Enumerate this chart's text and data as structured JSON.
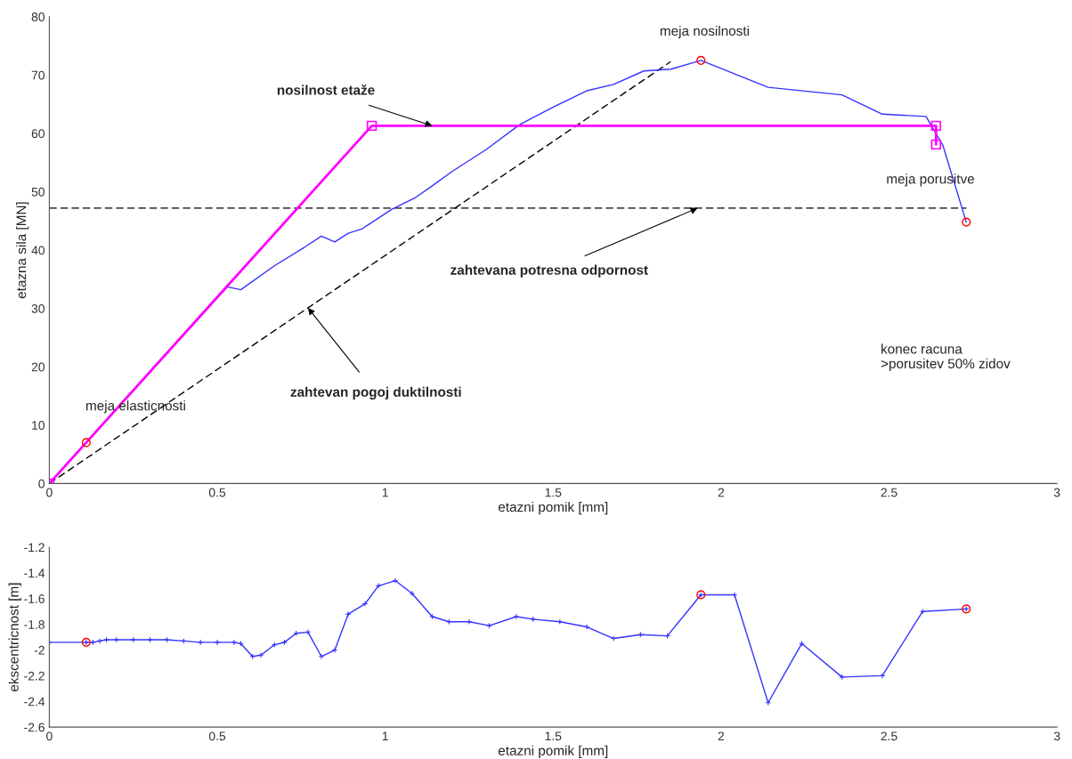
{
  "chart_data": [
    {
      "type": "line",
      "xlabel": "etazni pomik [mm]",
      "ylabel": "etazna sila [MN]",
      "xlim": [
        0,
        3
      ],
      "ylim": [
        0,
        80
      ],
      "xticks": [
        0,
        0.5,
        1,
        1.5,
        2,
        2.5,
        3
      ],
      "yticks": [
        0,
        10,
        20,
        30,
        40,
        50,
        60,
        70,
        80
      ],
      "grid": false,
      "legend": false,
      "series": [
        {
          "type": "line",
          "color": "#000000",
          "line_style": "dashed",
          "marker": "none",
          "x": [
            0,
            1.85
          ],
          "values": [
            0,
            72.3
          ]
        },
        {
          "type": "line",
          "color": "#000000",
          "line_style": "dashed",
          "marker": "none",
          "x": [
            0,
            2.73
          ],
          "values": [
            47.2,
            47.2
          ]
        },
        {
          "type": "line",
          "color": "#3333ff",
          "line_style": "solid",
          "marker": "none",
          "x": [
            0,
            0.53,
            0.57,
            0.67,
            0.76,
            0.81,
            0.85,
            0.89,
            0.93,
            1.02,
            1.09,
            1.14,
            1.2,
            1.3,
            1.4,
            1.5,
            1.6,
            1.68,
            1.77,
            1.85,
            1.94,
            2.14,
            2.36,
            2.48,
            2.61,
            2.66,
            2.73
          ],
          "values": [
            0,
            33.7,
            33.2,
            37.3,
            40.5,
            42.4,
            41.4,
            42.9,
            43.6,
            47,
            49,
            51,
            53.5,
            57.2,
            61.5,
            64.5,
            67.3,
            68.4,
            70.7,
            71,
            72.5,
            67.9,
            66.6,
            63.3,
            62.9,
            58,
            44.8
          ]
        },
        {
          "type": "line",
          "color": "#ff00ff",
          "line_style": "solid",
          "marker": "square",
          "x": [
            0,
            0.96,
            2.64,
            2.64
          ],
          "values": [
            0,
            61.3,
            61.3,
            58.1
          ]
        },
        {
          "type": "scatter",
          "color": "#ff0000",
          "marker": "circle",
          "x": [
            0.11,
            1.94,
            2.73
          ],
          "values": [
            7,
            72.5,
            44.8
          ]
        }
      ],
      "annotations": [
        {
          "text": "meja elasticnosti",
          "x": 0.11,
          "y": 7
        },
        {
          "text": "meja nosilnosti",
          "x": 1.94,
          "y": 72.5
        },
        {
          "text": "meja porusitve",
          "x": 2.73,
          "y": 44.8
        },
        {
          "text": "nosilnost etaže",
          "x": 1.14,
          "y": 61.3
        },
        {
          "text": "zahtevan pogoj duktilnosti",
          "x": 0.77,
          "y": 30.1
        },
        {
          "text": "zahtevana potresna odpornost",
          "x": 1.93,
          "y": 47.2
        },
        "konec racuna\n>porusitev 50% zidov"
      ]
    },
    {
      "type": "line",
      "xlabel": "etazni pomik [mm]",
      "ylabel": "ekscentricnost [m]",
      "xlim": [
        0,
        3
      ],
      "ylim": [
        -2.6,
        -1.2
      ],
      "xticks": [
        0,
        0.5,
        1,
        1.5,
        2,
        2.5,
        3
      ],
      "yticks": [
        -2.6,
        -2.4,
        -2.2,
        -2,
        -1.8,
        -1.6,
        -1.4,
        -1.2
      ],
      "grid": false,
      "legend": false,
      "series": [
        {
          "type": "line",
          "color": "#3333ff",
          "line_style": "solid",
          "marker": "cross",
          "x": [
            0,
            0.11,
            0.13,
            0.15,
            0.17,
            0.2,
            0.25,
            0.3,
            0.35,
            0.4,
            0.45,
            0.5,
            0.55,
            0.57,
            0.605,
            0.63,
            0.67,
            0.7,
            0.735,
            0.77,
            0.81,
            0.85,
            0.89,
            0.94,
            0.98,
            1.03,
            1.08,
            1.14,
            1.19,
            1.25,
            1.31,
            1.39,
            1.44,
            1.52,
            1.6,
            1.68,
            1.76,
            1.84,
            1.94,
            2.04,
            2.14,
            2.24,
            2.36,
            2.48,
            2.6,
            2.73
          ],
          "values": [
            -1.94,
            -1.94,
            -1.94,
            -1.93,
            -1.92,
            -1.92,
            -1.92,
            -1.92,
            -1.92,
            -1.93,
            -1.94,
            -1.94,
            -1.94,
            -1.95,
            -2.05,
            -2.04,
            -1.96,
            -1.94,
            -1.87,
            -1.86,
            -2.05,
            -2.0,
            -1.72,
            -1.64,
            -1.5,
            -1.46,
            -1.56,
            -1.74,
            -1.78,
            -1.78,
            -1.81,
            -1.74,
            -1.76,
            -1.78,
            -1.82,
            -1.91,
            -1.88,
            -1.89,
            -1.57,
            -1.57,
            -2.41,
            -1.95,
            -2.21,
            -2.2,
            -1.7,
            -1.68
          ]
        },
        {
          "type": "scatter",
          "color": "#ff0000",
          "marker": "circle",
          "x": [
            0.11,
            1.94,
            2.73
          ],
          "values": [
            -1.94,
            -1.57,
            -1.68
          ]
        }
      ]
    }
  ]
}
